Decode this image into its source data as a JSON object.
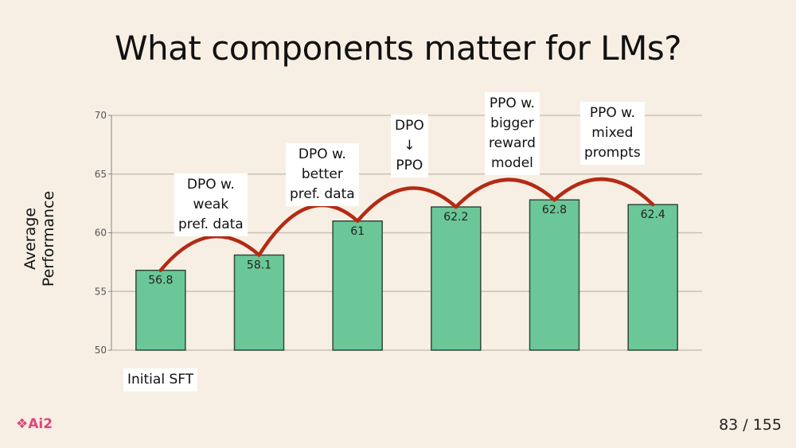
{
  "slide": {
    "title": "What components matter for LMs?",
    "page_number": "83 / 155",
    "brand": "❖Ai2"
  },
  "chart_data": {
    "type": "bar",
    "categories": [
      "Initial SFT",
      "DPO w. weak pref. data",
      "DPO w. better pref. data",
      "DPO → PPO",
      "PPO w. bigger reward model",
      "PPO w. mixed prompts"
    ],
    "values": [
      56.8,
      58.1,
      61,
      62.2,
      62.8,
      62.4
    ],
    "ylabel": [
      "Average",
      "Performance"
    ],
    "ylim": [
      50,
      70
    ],
    "yticks": [
      50,
      55,
      60,
      65,
      70
    ],
    "grid": true,
    "bar_color": "#6bc797",
    "arrow_color": "#b42a14",
    "callouts": [
      [
        "Initial SFT"
      ],
      [
        "DPO w.",
        "weak",
        "pref. data"
      ],
      [
        "DPO w.",
        "better",
        "pref. data"
      ],
      [
        "DPO",
        "↓",
        "PPO"
      ],
      [
        "PPO w.",
        "bigger",
        "reward",
        "model"
      ],
      [
        "PPO w.",
        "mixed",
        "prompts"
      ]
    ]
  }
}
